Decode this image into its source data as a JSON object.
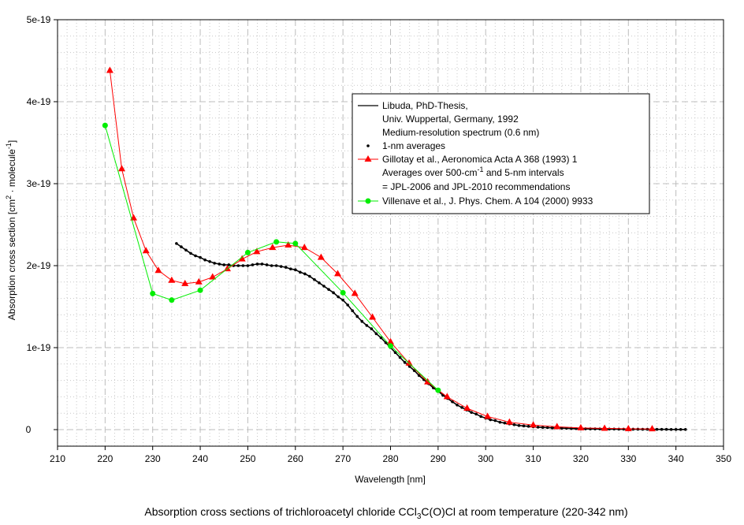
{
  "chart_data": {
    "type": "line",
    "title": "Absorption cross sections of trichloroacetyl chloride CCl3C(O)Cl at room temperature (220-342 nm)",
    "title_parts": {
      "pre": "Absorption cross sections of trichloroacetyl chloride CCl",
      "sub": "3",
      "post": "C(O)Cl at room temperature (220-342 nm)"
    },
    "xlabel": "Wavelength [nm]",
    "ylabel_parts": {
      "a": "Absorption cross section [cm",
      "sup1": "2",
      "b": " · molecule",
      "sup2": "-1",
      "c": "]"
    },
    "ylabel": "Absorption cross section [cm2 · molecule-1]",
    "xlim": [
      210,
      350
    ],
    "ylim": [
      0,
      5
    ],
    "y_unit": 1e-19,
    "grid": true,
    "xticks": [
      210,
      220,
      230,
      240,
      250,
      260,
      270,
      280,
      290,
      300,
      310,
      320,
      330,
      340,
      350
    ],
    "yticks": [
      0,
      1,
      2,
      3,
      4,
      5
    ],
    "ytick_labels": [
      "0",
      "1e-19",
      "2e-19",
      "3e-19",
      "4e-19",
      "5e-19"
    ],
    "legend_position": "top-right",
    "legend": [
      {
        "lines": [
          "Libuda, PhD-Thesis,",
          "Univ. Wuppertal, Germany, 1992",
          "Medium-resolution spectrum (0.6 nm)"
        ],
        "marker": "line",
        "color": "#000000"
      },
      {
        "lines": [
          "1-nm averages"
        ],
        "marker": "dot",
        "color": "#000000"
      },
      {
        "lines": [
          "Gillotay et al., Aeronomica Acta A 368 (1993) 1",
          "Averages over 500-cm-1 and 5-nm intervals",
          "= JPL-2006 and JPL-2010 recommendations"
        ],
        "line2_parts": {
          "a": "Averages over 500-cm",
          "sup": "-1",
          "b": " and 5-nm intervals"
        },
        "marker": "triangle",
        "color": "#ff0000"
      },
      {
        "lines": [
          "Villenave et al., J. Phys. Chem. A 104 (2000) 9933"
        ],
        "marker": "circle",
        "color": "#00ee00"
      }
    ],
    "series": [
      {
        "name": "Libuda 1-nm averages",
        "color": "#000000",
        "marker": "dot",
        "x_start": 235,
        "x_step": 1,
        "y": [
          2.27,
          2.23,
          2.19,
          2.15,
          2.12,
          2.1,
          2.07,
          2.05,
          2.03,
          2.02,
          2.01,
          2.01,
          2.0,
          2.0,
          2.0,
          2.0,
          2.01,
          2.02,
          2.02,
          2.01,
          2.0,
          2.0,
          1.99,
          1.98,
          1.96,
          1.95,
          1.92,
          1.9,
          1.87,
          1.83,
          1.79,
          1.75,
          1.71,
          1.67,
          1.62,
          1.58,
          1.52,
          1.45,
          1.38,
          1.32,
          1.27,
          1.23,
          1.17,
          1.12,
          1.06,
          1.0,
          0.94,
          0.88,
          0.82,
          0.77,
          0.72,
          0.66,
          0.61,
          0.56,
          0.51,
          0.47,
          0.42,
          0.38,
          0.34,
          0.3,
          0.27,
          0.24,
          0.21,
          0.19,
          0.16,
          0.14,
          0.12,
          0.11,
          0.09,
          0.08,
          0.07,
          0.06,
          0.05,
          0.045,
          0.04,
          0.035,
          0.03,
          0.027,
          0.024,
          0.022,
          0.02,
          0.018,
          0.016,
          0.014,
          0.012,
          0.01,
          0.01,
          0.009,
          0.009,
          0.008,
          0.008,
          0.007,
          0.007,
          0.006,
          0.006,
          0.005,
          0.005,
          0.005,
          0.004,
          0.004,
          0.004,
          0.003,
          0.003,
          0.003,
          0.002,
          0.002,
          0.002,
          0.002
        ]
      },
      {
        "name": "Gillotay et al. 1993",
        "color": "#ff0000",
        "marker": "triangle",
        "x": [
          221,
          223.5,
          226,
          228.6,
          231.2,
          234,
          236.8,
          239.7,
          242.6,
          245.7,
          248.8,
          251.9,
          255.2,
          258.5,
          261.9,
          265.4,
          268.9,
          272.5,
          276.2,
          280,
          283.9,
          287.8,
          291.9,
          296.1,
          300.4,
          305,
          310,
          315,
          320,
          325,
          330,
          335
        ],
        "y": [
          4.38,
          3.18,
          2.58,
          2.18,
          1.94,
          1.82,
          1.78,
          1.8,
          1.86,
          1.96,
          2.08,
          2.17,
          2.22,
          2.25,
          2.22,
          2.1,
          1.9,
          1.66,
          1.37,
          1.07,
          0.81,
          0.58,
          0.4,
          0.26,
          0.16,
          0.09,
          0.055,
          0.035,
          0.02,
          0.015,
          0.01,
          0.008
        ]
      },
      {
        "name": "Villenave et al. 2000",
        "color": "#00ee00",
        "marker": "circle",
        "x": [
          220,
          230,
          234,
          240,
          250,
          256,
          260,
          270,
          280,
          290
        ],
        "y": [
          3.71,
          1.66,
          1.58,
          1.7,
          2.16,
          2.29,
          2.27,
          1.67,
          1.02,
          0.48
        ]
      }
    ]
  }
}
